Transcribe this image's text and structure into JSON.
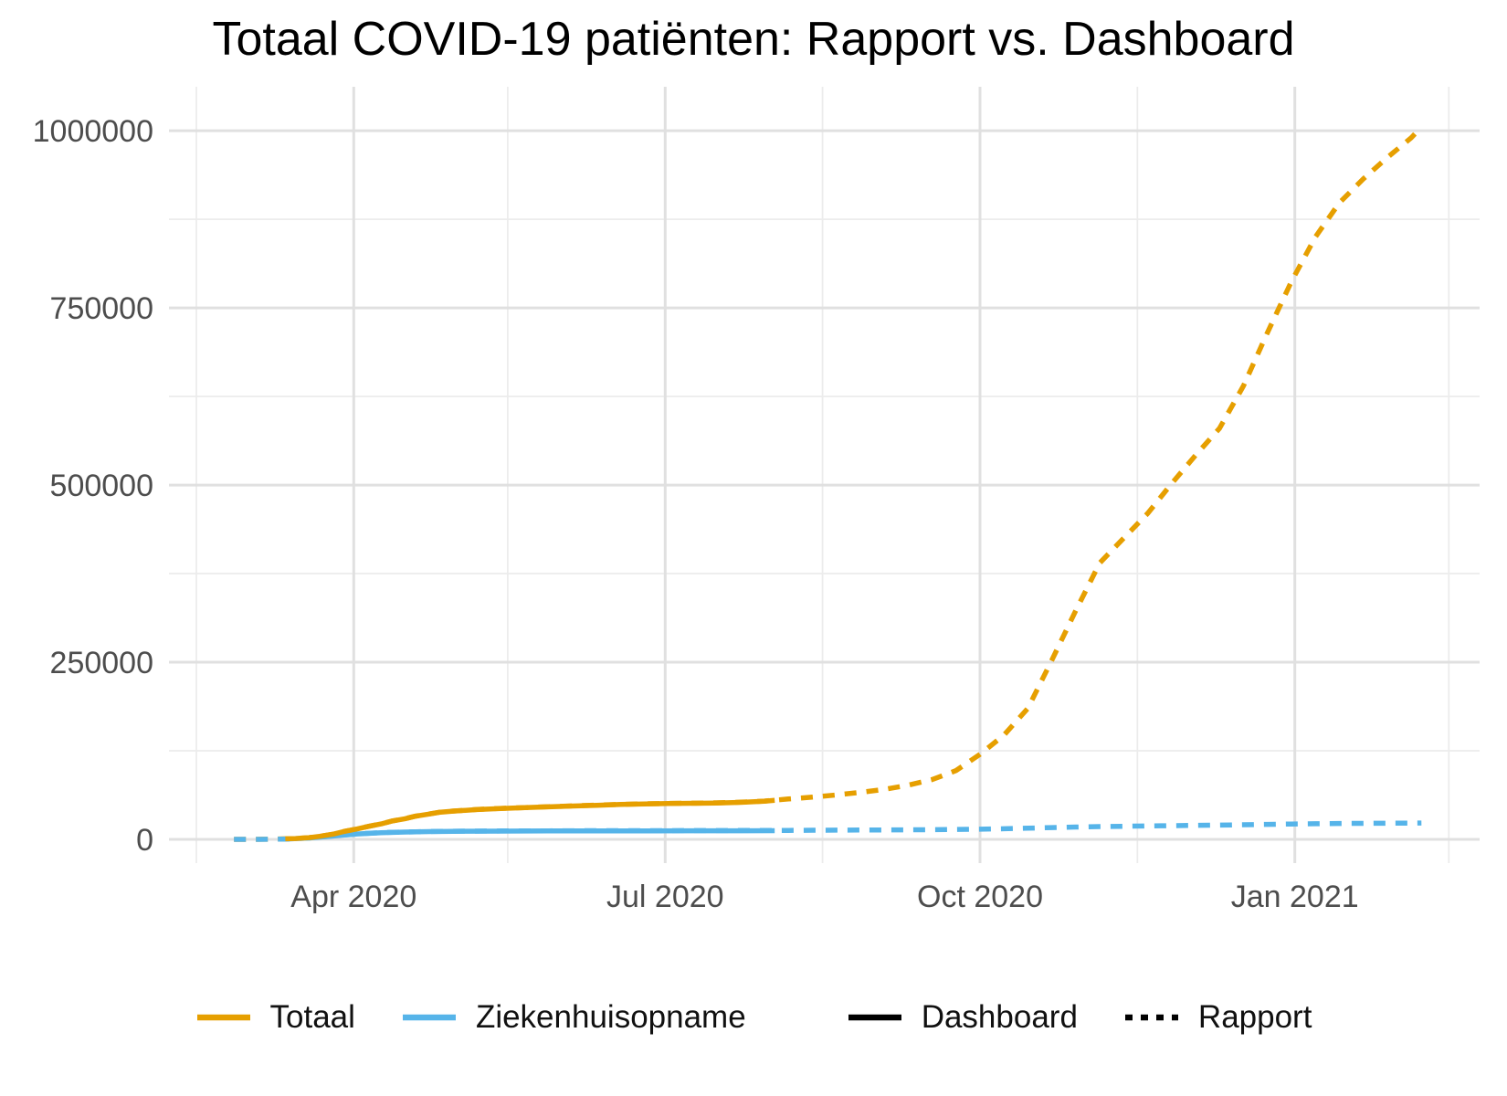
{
  "chart_data": {
    "type": "line",
    "title": "Totaal COVID-19 patiënten: Rapport vs. Dashboard",
    "xlabel": "",
    "ylabel": "",
    "style": {
      "background": "#FFFFFF",
      "grid_major": "#E0E0E0",
      "grid_minor": "#ECECEC",
      "axis_text_color": "#4D4D4D",
      "title_color": "#000000",
      "orange": "#E69F00",
      "blue": "#56B4E9",
      "black": "#000000"
    },
    "axes": {
      "x": {
        "domain": [
          "2020-02-07",
          "2021-02-24"
        ],
        "ticks": [
          {
            "date": "2020-04-01",
            "label": "Apr 2020"
          },
          {
            "date": "2020-07-01",
            "label": "Jul 2020"
          },
          {
            "date": "2020-10-01",
            "label": "Oct 2020"
          },
          {
            "date": "2021-01-01",
            "label": "Jan 2021"
          }
        ],
        "minor": [
          "2020-02-15",
          "2020-05-16",
          "2020-08-16",
          "2020-11-16",
          "2021-02-15"
        ]
      },
      "y": {
        "domain": [
          -33500,
          1062000
        ],
        "ticks": [
          {
            "value": 0,
            "label": "0"
          },
          {
            "value": 250000,
            "label": "250000"
          },
          {
            "value": 500000,
            "label": "500000"
          },
          {
            "value": 750000,
            "label": "750000"
          },
          {
            "value": 1000000,
            "label": "1000000"
          }
        ],
        "minor": [
          125000,
          375000,
          625000,
          875000
        ]
      }
    },
    "series": [
      {
        "name": "Totaal",
        "source": "Rapport",
        "color": "#E69F00",
        "dash": true,
        "points": [
          [
            "2020-02-26",
            0
          ],
          [
            "2020-03-01",
            15
          ],
          [
            "2020-03-05",
            90
          ],
          [
            "2020-03-08",
            270
          ],
          [
            "2020-03-12",
            800
          ],
          [
            "2020-03-15",
            1200
          ],
          [
            "2020-03-19",
            2500
          ],
          [
            "2020-03-22",
            4200
          ],
          [
            "2020-03-26",
            7400
          ],
          [
            "2020-03-29",
            10900
          ],
          [
            "2020-04-02",
            14800
          ],
          [
            "2020-04-05",
            18000
          ],
          [
            "2020-04-09",
            21900
          ],
          [
            "2020-04-12",
            25700
          ],
          [
            "2020-04-16",
            29300
          ],
          [
            "2020-04-19",
            32700
          ],
          [
            "2020-04-23",
            35800
          ],
          [
            "2020-04-26",
            38300
          ],
          [
            "2020-04-30",
            40000
          ],
          [
            "2020-05-07",
            42200
          ],
          [
            "2020-05-14",
            43700
          ],
          [
            "2020-05-21",
            44900
          ],
          [
            "2020-05-28",
            46100
          ],
          [
            "2020-06-04",
            47200
          ],
          [
            "2020-06-11",
            48300
          ],
          [
            "2020-06-18",
            49400
          ],
          [
            "2020-06-25",
            50100
          ],
          [
            "2020-07-02",
            50700
          ],
          [
            "2020-07-09",
            51100
          ],
          [
            "2020-07-16",
            51600
          ],
          [
            "2020-07-23",
            52500
          ],
          [
            "2020-07-30",
            54000
          ],
          [
            "2020-08-06",
            57000
          ],
          [
            "2020-08-13",
            59600
          ],
          [
            "2020-08-20",
            62700
          ],
          [
            "2020-08-27",
            66200
          ],
          [
            "2020-09-03",
            70500
          ],
          [
            "2020-09-10",
            76500
          ],
          [
            "2020-09-17",
            84300
          ],
          [
            "2020-09-24",
            97000
          ],
          [
            "2020-10-01",
            120000
          ],
          [
            "2020-10-08",
            147000
          ],
          [
            "2020-10-15",
            185000
          ],
          [
            "2020-10-22",
            253000
          ],
          [
            "2020-10-29",
            323000
          ],
          [
            "2020-11-05",
            390000
          ],
          [
            "2020-11-12",
            425000
          ],
          [
            "2020-11-19",
            460000
          ],
          [
            "2020-11-26",
            502000
          ],
          [
            "2020-12-03",
            542000
          ],
          [
            "2020-12-10",
            580000
          ],
          [
            "2020-12-17",
            640000
          ],
          [
            "2020-12-24",
            715000
          ],
          [
            "2020-12-31",
            787000
          ],
          [
            "2021-01-07",
            850000
          ],
          [
            "2021-01-14",
            898000
          ],
          [
            "2021-01-21",
            932000
          ],
          [
            "2021-01-28",
            962000
          ],
          [
            "2021-02-04",
            990000
          ],
          [
            "2021-02-07",
            1005000
          ]
        ]
      },
      {
        "name": "Ziekenhuisopname",
        "source": "Rapport",
        "color": "#56B4E9",
        "dash": true,
        "points": [
          [
            "2020-02-26",
            0
          ],
          [
            "2020-03-05",
            50
          ],
          [
            "2020-03-12",
            400
          ],
          [
            "2020-03-19",
            2000
          ],
          [
            "2020-03-26",
            4900
          ],
          [
            "2020-04-02",
            7800
          ],
          [
            "2020-04-09",
            9500
          ],
          [
            "2020-04-16",
            10500
          ],
          [
            "2020-04-23",
            11100
          ],
          [
            "2020-04-30",
            11500
          ],
          [
            "2020-05-14",
            11850
          ],
          [
            "2020-05-28",
            12050
          ],
          [
            "2020-06-11",
            12200
          ],
          [
            "2020-06-25",
            12300
          ],
          [
            "2020-07-09",
            12400
          ],
          [
            "2020-07-23",
            12500
          ],
          [
            "2020-08-06",
            12700
          ],
          [
            "2020-08-20",
            13000
          ],
          [
            "2020-09-03",
            13300
          ],
          [
            "2020-09-17",
            13700
          ],
          [
            "2020-10-01",
            14300
          ],
          [
            "2020-10-08",
            14900
          ],
          [
            "2020-10-15",
            15700
          ],
          [
            "2020-10-22",
            16600
          ],
          [
            "2020-10-29",
            17400
          ],
          [
            "2020-11-05",
            18000
          ],
          [
            "2020-11-12",
            18500
          ],
          [
            "2020-11-19",
            18900
          ],
          [
            "2020-11-26",
            19300
          ],
          [
            "2020-12-03",
            19700
          ],
          [
            "2020-12-10",
            20100
          ],
          [
            "2020-12-17",
            20600
          ],
          [
            "2020-12-24",
            21200
          ],
          [
            "2020-12-31",
            21700
          ],
          [
            "2021-01-07",
            22100
          ],
          [
            "2021-01-14",
            22400
          ],
          [
            "2021-01-21",
            22600
          ],
          [
            "2021-01-28",
            22800
          ],
          [
            "2021-02-04",
            23000
          ],
          [
            "2021-02-07",
            23100
          ]
        ]
      },
      {
        "name": "Ziekenhuisopname",
        "source": "Dashboard",
        "color": "#56B4E9",
        "dash": false,
        "points": [
          [
            "2020-03-12",
            350
          ],
          [
            "2020-03-19",
            1900
          ],
          [
            "2020-03-26",
            4700
          ],
          [
            "2020-04-02",
            7600
          ],
          [
            "2020-04-09",
            9300
          ],
          [
            "2020-04-16",
            10300
          ],
          [
            "2020-04-23",
            10900
          ],
          [
            "2020-04-30",
            11300
          ],
          [
            "2020-05-14",
            11650
          ],
          [
            "2020-05-28",
            11850
          ],
          [
            "2020-06-11",
            11950
          ],
          [
            "2020-06-25",
            12050
          ],
          [
            "2020-07-09",
            12100
          ],
          [
            "2020-07-23",
            12150
          ],
          [
            "2020-08-02",
            12250
          ]
        ]
      },
      {
        "name": "Totaal",
        "source": "Dashboard",
        "color": "#E69F00",
        "dash": false,
        "points": [
          [
            "2020-03-12",
            800
          ],
          [
            "2020-03-15",
            1200
          ],
          [
            "2020-03-19",
            2500
          ],
          [
            "2020-03-22",
            4200
          ],
          [
            "2020-03-26",
            7400
          ],
          [
            "2020-03-29",
            10900
          ],
          [
            "2020-04-02",
            14700
          ],
          [
            "2020-04-05",
            17900
          ],
          [
            "2020-04-09",
            21800
          ],
          [
            "2020-04-12",
            25600
          ],
          [
            "2020-04-16",
            29200
          ],
          [
            "2020-04-19",
            32600
          ],
          [
            "2020-04-23",
            35700
          ],
          [
            "2020-04-26",
            38200
          ],
          [
            "2020-04-30",
            39800
          ],
          [
            "2020-05-07",
            42000
          ],
          [
            "2020-05-14",
            43500
          ],
          [
            "2020-05-21",
            44700
          ],
          [
            "2020-05-28",
            45950
          ],
          [
            "2020-06-04",
            47000
          ],
          [
            "2020-06-11",
            48100
          ],
          [
            "2020-06-18",
            49200
          ],
          [
            "2020-06-25",
            49900
          ],
          [
            "2020-07-02",
            50500
          ],
          [
            "2020-07-09",
            50900
          ],
          [
            "2020-07-16",
            51300
          ],
          [
            "2020-07-23",
            52200
          ],
          [
            "2020-07-30",
            53900
          ],
          [
            "2020-08-02",
            55000
          ]
        ]
      }
    ],
    "legend_position": "bottom"
  },
  "legend": {
    "color_items": [
      {
        "label": "Totaal",
        "color": "#E69F00"
      },
      {
        "label": "Ziekenhuisopname",
        "color": "#56B4E9"
      }
    ],
    "linetype_items": [
      {
        "label": "Dashboard",
        "dash": false
      },
      {
        "label": "Rapport",
        "dash": true
      }
    ],
    "linetype_color": "#000000"
  }
}
